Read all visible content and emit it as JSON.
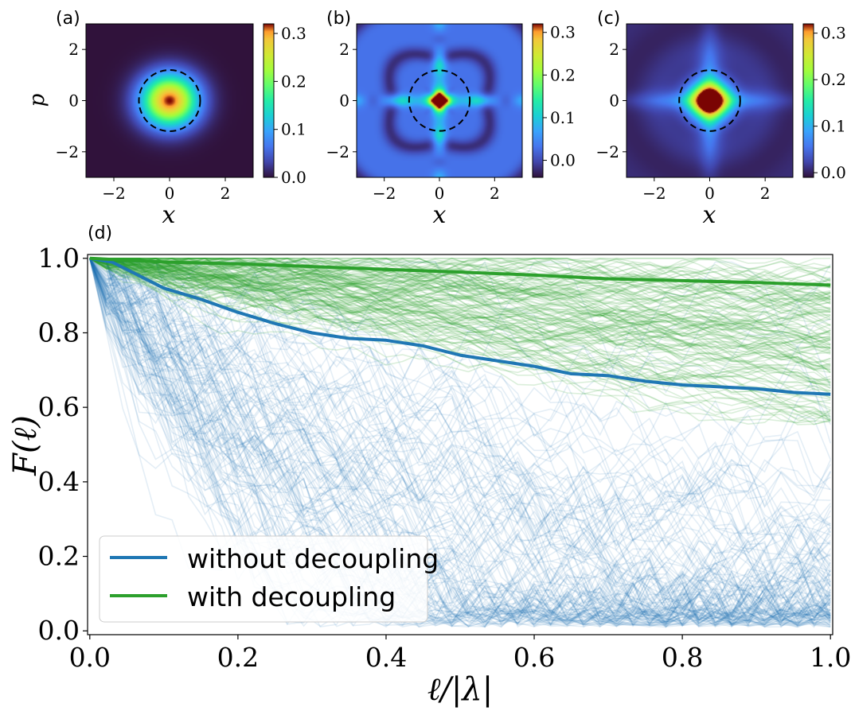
{
  "figure": {
    "colors": {
      "without": "#1f77b4",
      "with": "#2ca02c",
      "axis": "#000000",
      "dashed_circle": "#000000"
    },
    "colormap": "turbo"
  },
  "chart_data": [
    {
      "type": "heatmap",
      "panel_label": "(a)",
      "xlabel": "x",
      "ylabel": "p",
      "xlim": [
        -3,
        3
      ],
      "ylim": [
        -3,
        3
      ],
      "x_ticks": [
        -2,
        0,
        2
      ],
      "y_ticks": [
        -2,
        0,
        2
      ],
      "x_tick_labels": [
        "−2",
        "0",
        "2"
      ],
      "y_tick_labels": [
        "−2",
        "0",
        "2"
      ],
      "colorbar": {
        "min": 0.0,
        "max": 0.32,
        "ticks": [
          0.0,
          0.1,
          0.2,
          0.3
        ],
        "tick_labels": [
          "0.0",
          "0.1",
          "0.2",
          "0.3"
        ]
      },
      "pattern": "gaussian",
      "circle_radius": 1.1
    },
    {
      "type": "heatmap",
      "panel_label": "(b)",
      "xlabel": "x",
      "ylabel": "",
      "xlim": [
        -3,
        3
      ],
      "ylim": [
        -3,
        3
      ],
      "x_ticks": [
        -2,
        0,
        2
      ],
      "y_ticks": [
        -2,
        0,
        2
      ],
      "x_tick_labels": [
        "−2",
        "0",
        "2"
      ],
      "y_tick_labels": [
        "−2",
        "0",
        "2"
      ],
      "colorbar": {
        "min": -0.04,
        "max": 0.32,
        "ticks": [
          0.0,
          0.1,
          0.2,
          0.3
        ],
        "tick_labels": [
          "0.0",
          "0.1",
          "0.2",
          "0.3"
        ]
      },
      "pattern": "cross",
      "circle_radius": 1.1
    },
    {
      "type": "heatmap",
      "panel_label": "(c)",
      "xlabel": "x",
      "ylabel": "",
      "xlim": [
        -3,
        3
      ],
      "ylim": [
        -3,
        3
      ],
      "x_ticks": [
        -2,
        0,
        2
      ],
      "y_ticks": [
        -2,
        0,
        2
      ],
      "x_tick_labels": [
        "−2",
        "0",
        "2"
      ],
      "y_tick_labels": [
        "−2",
        "0",
        "2"
      ],
      "colorbar": {
        "min": -0.01,
        "max": 0.32,
        "ticks": [
          0.0,
          0.1,
          0.2,
          0.3
        ],
        "tick_labels": [
          "0.0",
          "0.1",
          "0.2",
          "0.3"
        ]
      },
      "pattern": "diamond",
      "circle_radius": 1.1
    },
    {
      "type": "line",
      "panel_label": "(d)",
      "xlabel": "ℓ/|λ|",
      "ylabel": "F(ℓ)",
      "xlim": [
        0.0,
        1.0
      ],
      "ylim": [
        0.0,
        1.0
      ],
      "x_ticks": [
        0.0,
        0.2,
        0.4,
        0.6,
        0.8,
        1.0
      ],
      "y_ticks": [
        0.0,
        0.2,
        0.4,
        0.6,
        0.8,
        1.0
      ],
      "x_tick_labels": [
        "0.0",
        "0.2",
        "0.4",
        "0.6",
        "0.8",
        "1.0"
      ],
      "y_tick_labels": [
        "0.0",
        "0.2",
        "0.4",
        "0.6",
        "0.8",
        "1.0"
      ],
      "legend_position": "lower-left",
      "series": [
        {
          "name": "without decoupling",
          "color": "#1f77b4",
          "x": [
            0.0,
            0.03,
            0.05,
            0.1,
            0.15,
            0.2,
            0.25,
            0.3,
            0.35,
            0.4,
            0.45,
            0.5,
            0.55,
            0.6,
            0.65,
            0.7,
            0.75,
            0.8,
            0.85,
            0.9,
            0.95,
            1.0
          ],
          "y": [
            1.0,
            0.99,
            0.97,
            0.92,
            0.89,
            0.855,
            0.825,
            0.8,
            0.785,
            0.78,
            0.765,
            0.74,
            0.725,
            0.71,
            0.69,
            0.685,
            0.67,
            0.66,
            0.655,
            0.65,
            0.64,
            0.635
          ]
        },
        {
          "name": "with decoupling",
          "color": "#2ca02c",
          "x": [
            0.0,
            0.05,
            0.1,
            0.2,
            0.3,
            0.4,
            0.5,
            0.6,
            0.7,
            0.8,
            0.9,
            1.0
          ],
          "y": [
            1.0,
            0.995,
            0.99,
            0.985,
            0.978,
            0.97,
            0.963,
            0.955,
            0.945,
            0.94,
            0.935,
            0.928
          ]
        }
      ],
      "background_trajectories": {
        "without_count": 140,
        "with_count": 140,
        "alpha": 0.12
      }
    }
  ]
}
